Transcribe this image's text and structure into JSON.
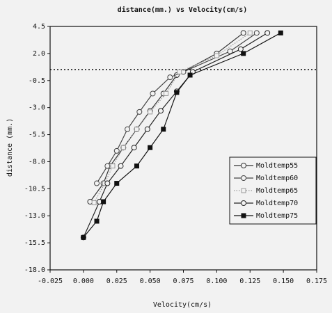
{
  "chart_data": {
    "type": "line",
    "title": "distance(mm.) vs Velocity(cm/s)",
    "x_label": "Velocity(cm/s)",
    "y_label": "distance (mm.)",
    "xlim": [
      -0.025,
      0.175
    ],
    "ylim": [
      -18.0,
      4.5
    ],
    "xticks": [
      -0.025,
      {
        "value": 0,
        "label": "0.000"
      },
      0.025,
      {
        "value": 0.05,
        "label": "0.050"
      },
      0.075,
      {
        "value": 0.1,
        "label": "0.100"
      },
      0.125,
      {
        "value": 0.15,
        "label": "0.150"
      },
      0.175
    ],
    "yticks": [
      4.5,
      {
        "value": 2,
        "label": "2.0"
      },
      -0.5,
      {
        "value": -3,
        "label": "-3.0"
      },
      -5.5,
      {
        "value": -8,
        "label": "-8.0"
      },
      -10.5,
      {
        "value": -13,
        "label": "-13.0"
      },
      -15.5,
      {
        "value": -18,
        "label": "-18.0"
      }
    ],
    "hline": 0.5,
    "series": [
      {
        "name": "Moldtemp55",
        "color": "#333333",
        "marker": "circle",
        "line_style": "solid",
        "x": [
          0.005,
          0.015,
          0.02,
          0.03,
          0.04,
          0.05,
          0.06,
          0.07,
          0.1,
          0.12
        ],
        "values": [
          -11.7,
          -10.0,
          -8.4,
          -6.7,
          -5.0,
          -3.3,
          -1.7,
          0.0,
          2.0,
          3.9
        ]
      },
      {
        "name": "Moldtemp60",
        "color": "#444444",
        "marker": "circle",
        "line_style": "solid",
        "x": [
          0.01,
          0.018,
          0.025,
          0.033,
          0.042,
          0.052,
          0.065,
          0.075,
          0.11,
          0.13
        ],
        "values": [
          -10.0,
          -8.4,
          -7.0,
          -5.0,
          -3.4,
          -1.7,
          -0.2,
          0.3,
          2.2,
          3.9
        ]
      },
      {
        "name": "Moldtemp65",
        "color": "#999999",
        "marker": "square",
        "line_style": "dotted",
        "x": [
          0.008,
          0.016,
          0.022,
          0.03,
          0.04,
          0.05,
          0.062,
          0.072,
          0.1,
          0.125
        ],
        "values": [
          -11.8,
          -10.0,
          -8.4,
          -6.7,
          -5.0,
          -3.4,
          -1.7,
          0.3,
          1.8,
          3.9
        ]
      },
      {
        "name": "Moldtemp70",
        "color": "#222222",
        "marker": "circle",
        "line_style": "solid",
        "x": [
          0.0,
          0.012,
          0.018,
          0.028,
          0.038,
          0.048,
          0.058,
          0.07,
          0.082,
          0.118,
          0.138
        ],
        "values": [
          -15.0,
          -11.7,
          -10.0,
          -8.4,
          -6.7,
          -5.0,
          -3.3,
          -1.5,
          0.3,
          2.4,
          3.9
        ]
      },
      {
        "name": "Moldtemp75",
        "color": "#111111",
        "marker": "filled-square",
        "line_style": "solid",
        "x": [
          0.0,
          0.01,
          0.015,
          0.025,
          0.04,
          0.05,
          0.06,
          0.07,
          0.08,
          0.12,
          0.148
        ],
        "values": [
          -15.0,
          -13.5,
          -11.7,
          -10.0,
          -8.4,
          -6.7,
          -5.0,
          -1.6,
          0.0,
          2.0,
          3.9
        ]
      }
    ]
  }
}
